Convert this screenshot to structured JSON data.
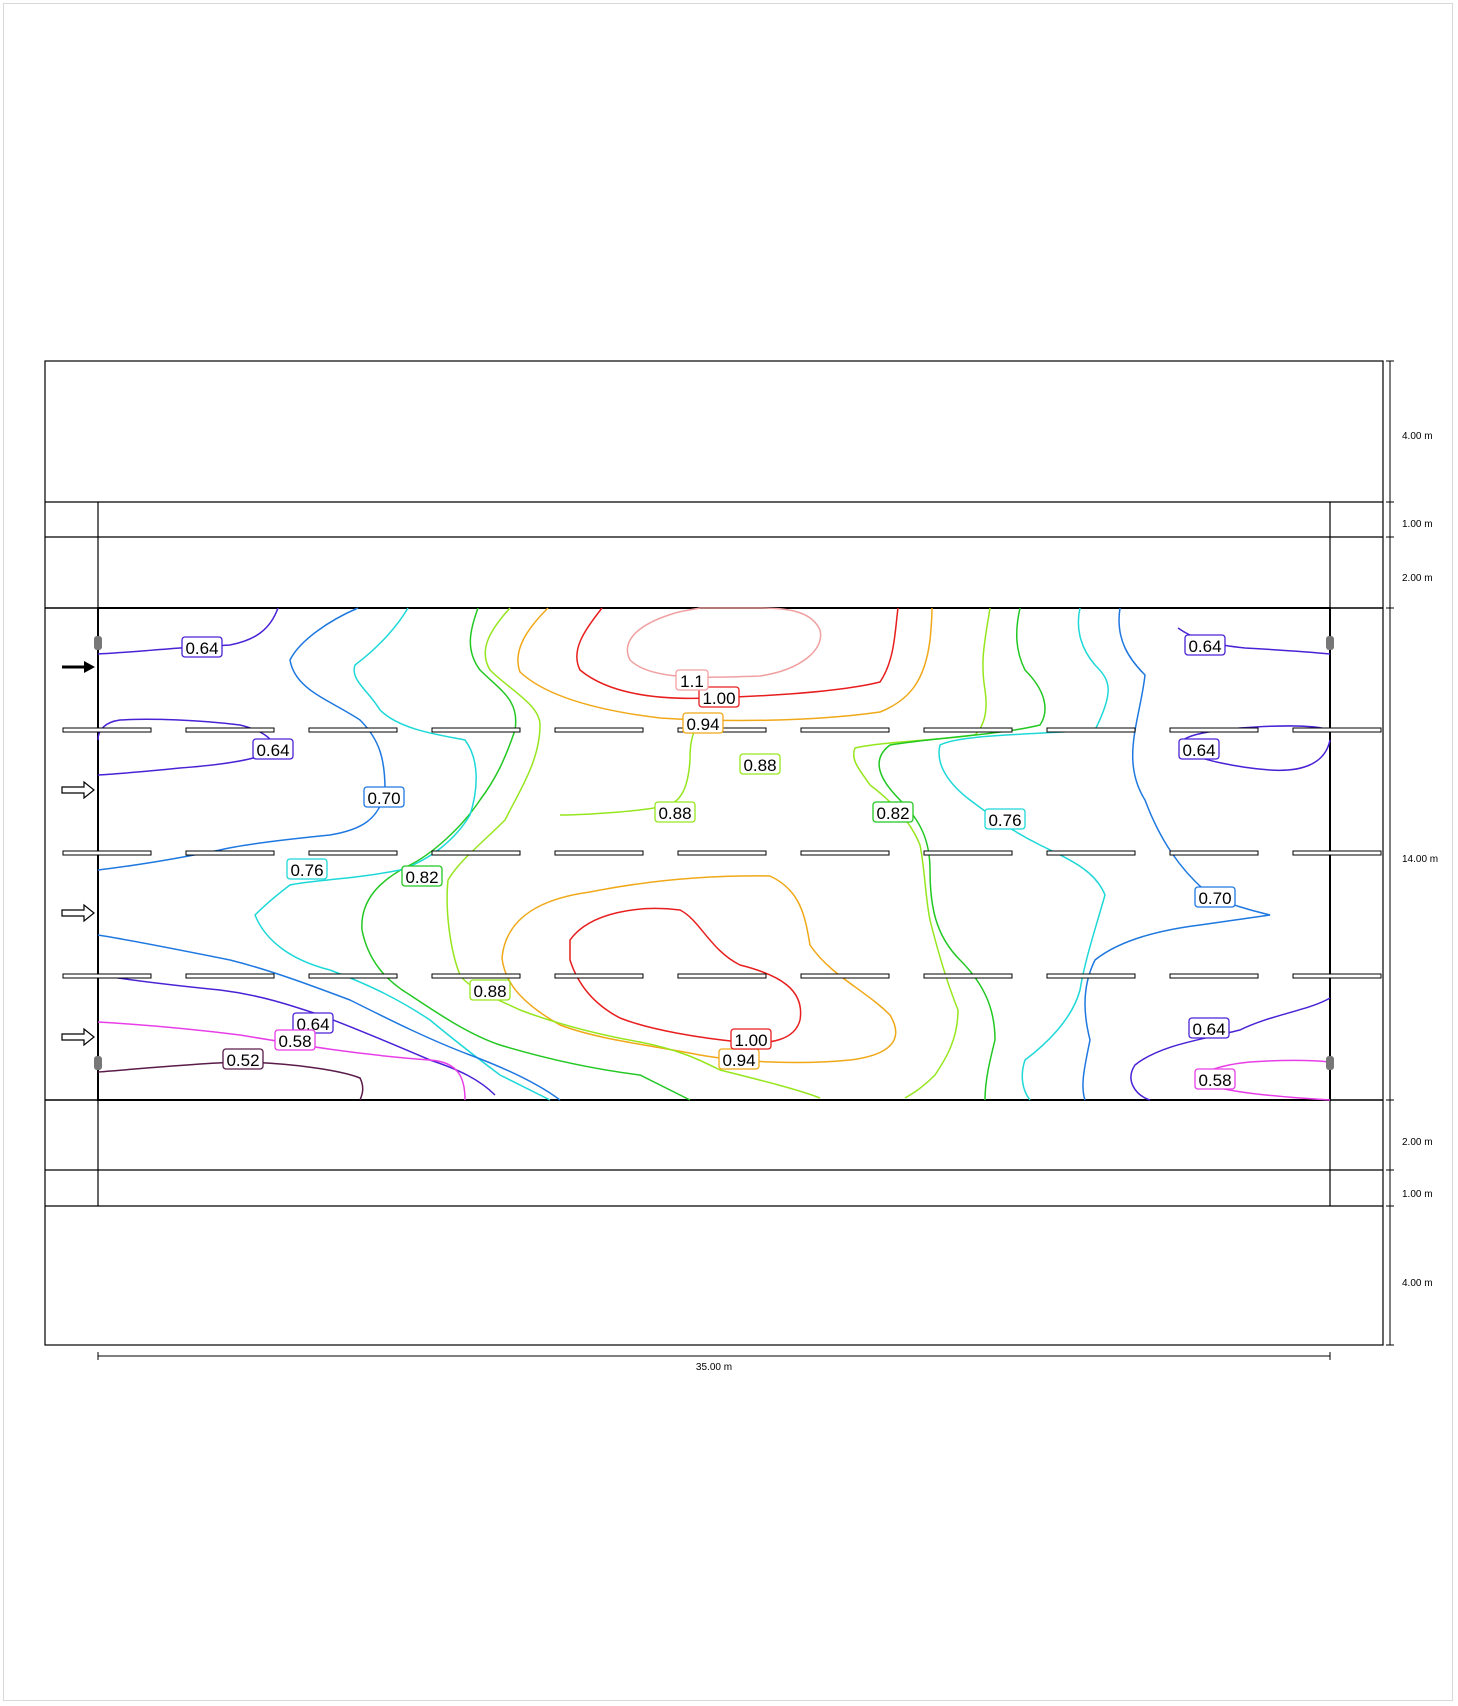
{
  "dimensions": {
    "right": [
      "4.00 m",
      "1.00 m",
      "2.00 m",
      "14.00 m",
      "2.00 m",
      "1.00 m",
      "4.00 m"
    ],
    "bottom": "35.00 m"
  },
  "colors": {
    "c052": "#5a1a4a",
    "c058": "#e83ee8",
    "c064": "#4a22d6",
    "c070": "#1e78e0",
    "c076": "#1ed8d8",
    "c082": "#22c822",
    "c088": "#96e61e",
    "c094": "#f0a818",
    "c100": "#e81e1e",
    "c110": "#f0a0a0"
  },
  "contour_labels": [
    {
      "text": "0.64",
      "color": "c064"
    },
    {
      "text": "0.64",
      "color": "c064"
    },
    {
      "text": "0.64",
      "color": "c064"
    },
    {
      "text": "0.64",
      "color": "c064"
    },
    {
      "text": "0.64",
      "color": "c064"
    },
    {
      "text": "0.64",
      "color": "c064"
    },
    {
      "text": "0.70",
      "color": "c070"
    },
    {
      "text": "0.70",
      "color": "c070"
    },
    {
      "text": "0.76",
      "color": "c076"
    },
    {
      "text": "0.76",
      "color": "c076"
    },
    {
      "text": "0.82",
      "color": "c082"
    },
    {
      "text": "0.82",
      "color": "c082"
    },
    {
      "text": "0.88",
      "color": "c088"
    },
    {
      "text": "0.88",
      "color": "c088"
    },
    {
      "text": "0.88",
      "color": "c088"
    },
    {
      "text": "0.94",
      "color": "c094"
    },
    {
      "text": "0.94",
      "color": "c094"
    },
    {
      "text": "1.00",
      "color": "c100"
    },
    {
      "text": "1.00",
      "color": "c100"
    },
    {
      "text": "1.1",
      "color": "c110"
    },
    {
      "text": "0.58",
      "color": "c058"
    },
    {
      "text": "0.58",
      "color": "c058"
    },
    {
      "text": "0.52",
      "color": "c052"
    }
  ]
}
